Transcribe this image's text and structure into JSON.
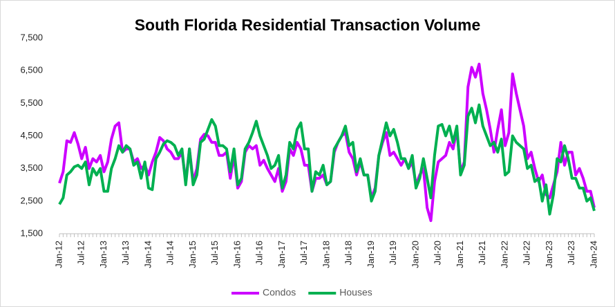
{
  "chart_data": {
    "type": "line",
    "title": "South Florida Residential Transaction Volume",
    "categories": [
      "Jan-12",
      null,
      null,
      null,
      null,
      null,
      "Jul-12",
      null,
      null,
      null,
      null,
      null,
      "Jan-13",
      null,
      null,
      null,
      null,
      null,
      "Jul-13",
      null,
      null,
      null,
      null,
      null,
      "Jan-14",
      null,
      null,
      null,
      null,
      null,
      "Jul-14",
      null,
      null,
      null,
      null,
      null,
      "Jan-15",
      null,
      null,
      null,
      null,
      null,
      "Jul-15",
      null,
      null,
      null,
      null,
      null,
      "Jan-16",
      null,
      null,
      null,
      null,
      null,
      "Jul-16",
      null,
      null,
      null,
      null,
      null,
      "Jan-17",
      null,
      null,
      null,
      null,
      null,
      "Jul-17",
      null,
      null,
      null,
      null,
      null,
      "Jan-18",
      null,
      null,
      null,
      null,
      null,
      "Jul-18",
      null,
      null,
      null,
      null,
      null,
      "Jan-19",
      null,
      null,
      null,
      null,
      null,
      "Jul-19",
      null,
      null,
      null,
      null,
      null,
      "Jan-20",
      null,
      null,
      null,
      null,
      null,
      "Jul-20",
      null,
      null,
      null,
      null,
      null,
      "Jan-21",
      null,
      null,
      null,
      null,
      null,
      "Jul-21",
      null,
      null,
      null,
      null,
      null,
      "Jan-22",
      null,
      null,
      null,
      null,
      null,
      "Jul-22",
      null,
      null,
      null,
      null,
      null,
      "Jan-23",
      null,
      null,
      null,
      null,
      null,
      "Jul-23",
      null,
      null,
      null,
      null,
      null,
      "Jan-24"
    ],
    "series": [
      {
        "name": "Condos",
        "color": "#cc00ff",
        "values": [
          3050,
          3400,
          4350,
          4300,
          4600,
          4250,
          3800,
          4150,
          3500,
          3800,
          3700,
          3900,
          3400,
          3700,
          4400,
          4800,
          4900,
          4000,
          4100,
          4100,
          3700,
          3800,
          3500,
          3600,
          3300,
          3700,
          4000,
          4450,
          4350,
          4100,
          4000,
          3800,
          3800,
          4000,
          3100,
          4100,
          3100,
          3500,
          4400,
          4550,
          4500,
          4300,
          4300,
          3900,
          3900,
          4000,
          3200,
          3900,
          2900,
          3100,
          4000,
          4200,
          4100,
          4200,
          3600,
          3750,
          3500,
          3300,
          3100,
          3500,
          2800,
          3100,
          4100,
          3900,
          4300,
          4100,
          3600,
          3600,
          2800,
          3200,
          3200,
          3300,
          3000,
          3100,
          4000,
          4300,
          4500,
          4600,
          4000,
          3800,
          3300,
          3700,
          3300,
          3300,
          2600,
          2900,
          3900,
          4300,
          4600,
          3900,
          4000,
          3800,
          3600,
          3800,
          3500,
          3700,
          3000,
          3300,
          3500,
          2300,
          1900,
          3100,
          3700,
          3800,
          3900,
          4300,
          4100,
          4700,
          3400,
          3700,
          6000,
          6600,
          6300,
          6700,
          5800,
          5300,
          4700,
          4000,
          4700,
          5300,
          4200,
          4600,
          6400,
          5800,
          5300,
          4800,
          3800,
          4000,
          3500,
          3100,
          3300,
          2700,
          2600,
          3000,
          3400,
          4300,
          3600,
          4000,
          4000,
          3300,
          3500,
          3200,
          2800,
          2800,
          2300
        ]
      },
      {
        "name": "Houses",
        "color": "#00b050",
        "values": [
          2400,
          2600,
          3300,
          3400,
          3550,
          3600,
          3500,
          3700,
          3000,
          3500,
          3300,
          3500,
          2800,
          2800,
          3500,
          3800,
          4200,
          4000,
          4200,
          4100,
          3600,
          3700,
          3200,
          3700,
          2900,
          2850,
          3800,
          4000,
          4250,
          4350,
          4300,
          4200,
          3900,
          4100,
          3000,
          4100,
          3000,
          3300,
          4300,
          4400,
          4700,
          5000,
          4800,
          4200,
          4200,
          4100,
          3400,
          4100,
          3000,
          3200,
          4100,
          4300,
          4600,
          4950,
          4500,
          4200,
          3900,
          3500,
          3600,
          3900,
          2900,
          3300,
          4300,
          4100,
          4700,
          4900,
          4100,
          4100,
          2800,
          3400,
          3300,
          3600,
          3000,
          3100,
          4100,
          4300,
          4500,
          4800,
          4200,
          4300,
          3400,
          3800,
          3300,
          3300,
          2500,
          2800,
          3900,
          4400,
          4900,
          4500,
          4700,
          4300,
          3800,
          3800,
          3500,
          3900,
          2900,
          3200,
          3800,
          3200,
          2600,
          3900,
          4800,
          4850,
          4500,
          4800,
          4300,
          4800,
          3300,
          3600,
          5100,
          5350,
          4900,
          5450,
          4800,
          4500,
          4200,
          4300,
          4000,
          4400,
          3300,
          3400,
          4500,
          4300,
          4200,
          4100,
          3500,
          3600,
          3100,
          3200,
          2500,
          3000,
          2100,
          2700,
          3800,
          3700,
          4200,
          3800,
          3200,
          3200,
          2900,
          2900,
          2500,
          2600,
          2200
        ]
      }
    ],
    "ylim": [
      1500,
      7500
    ],
    "yticks": [
      {
        "value": 1500,
        "label": "1,500"
      },
      {
        "value": 2500,
        "label": "2,500"
      },
      {
        "value": 3500,
        "label": "3,500"
      },
      {
        "value": 4500,
        "label": "4,500"
      },
      {
        "value": 5500,
        "label": "5,500"
      },
      {
        "value": 6500,
        "label": "6,500"
      },
      {
        "value": 7500,
        "label": "7,500"
      }
    ],
    "grid": false,
    "legend": "bottom"
  }
}
